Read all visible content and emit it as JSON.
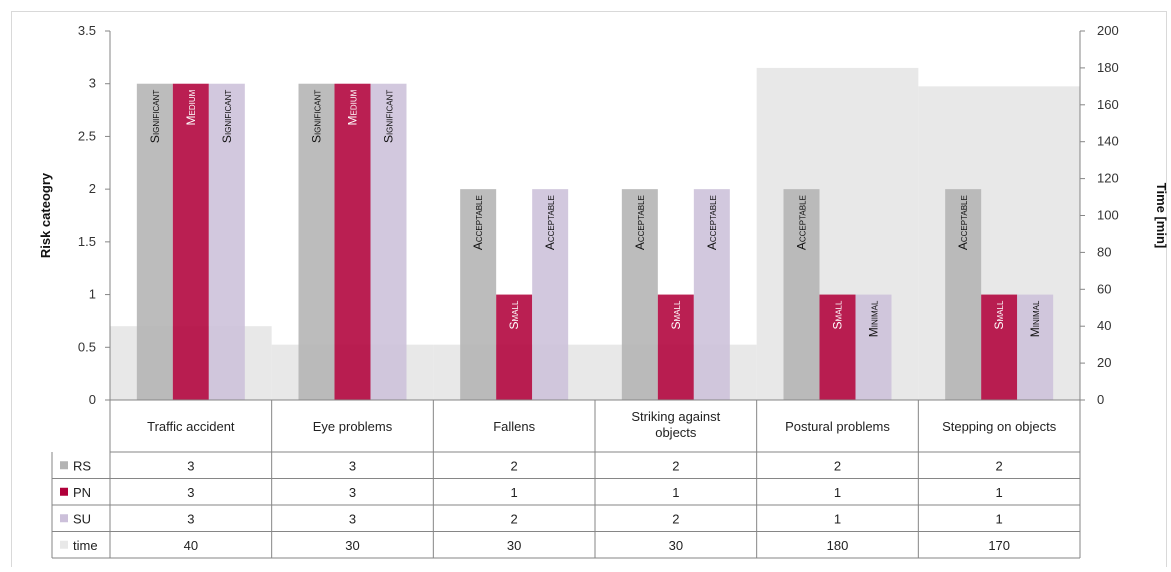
{
  "chart_data": {
    "type": "bar",
    "categories": [
      "Traffic accident",
      "Eye problems",
      "Fallens",
      "Striking against objects",
      "Postural problems",
      "Stepping on objects"
    ],
    "series": [
      {
        "name": "RS",
        "axis": "left",
        "color": "#b3b3b3",
        "values": [
          3,
          3,
          2,
          2,
          2,
          2
        ],
        "labels": [
          "Significant",
          "Significant",
          "Acceptable",
          "Acceptable",
          "Acceptable",
          "Acceptable"
        ]
      },
      {
        "name": "PN",
        "axis": "left",
        "color": "#b0003a",
        "values": [
          3,
          3,
          1,
          1,
          1,
          1
        ],
        "labels": [
          "Medium",
          "Medium",
          "Small",
          "Small",
          "Small",
          "Small"
        ]
      },
      {
        "name": "SU",
        "axis": "left",
        "color": "#ccc0da",
        "values": [
          3,
          3,
          2,
          2,
          1,
          1
        ],
        "labels": [
          "Significant",
          "Significant",
          "Acceptable",
          "Acceptable",
          "Minimal",
          "Minimal"
        ]
      },
      {
        "name": "time",
        "axis": "right",
        "type": "area",
        "color": "#e8e8e8",
        "values": [
          40,
          30,
          30,
          30,
          180,
          170
        ]
      }
    ],
    "ylabel": "Risk cateogry",
    "y2label": "Time [min]",
    "ylim": [
      0,
      3.5
    ],
    "y2lim": [
      0,
      200
    ],
    "yticks": [
      "0",
      "0.5",
      "1",
      "1.5",
      "2",
      "2.5",
      "3",
      "3.5"
    ],
    "y2ticks": [
      "0",
      "20",
      "40",
      "60",
      "80",
      "100",
      "120",
      "140",
      "160",
      "180",
      "200"
    ],
    "grid": false,
    "legend": "data-table"
  }
}
